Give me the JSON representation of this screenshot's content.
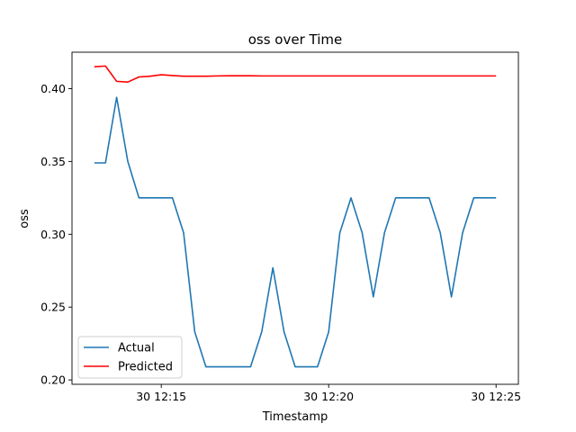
{
  "chart_data": {
    "type": "line",
    "title": "oss over Time",
    "xlabel": "Timestamp",
    "ylabel": "oss",
    "xlim": [
      "2000-01-30T12:12:20",
      "2000-01-30T12:25:40"
    ],
    "ylim": [
      0.197,
      0.425
    ],
    "xticks": [
      {
        "t": "2000-01-30T12:15:00",
        "label": "30 12:15"
      },
      {
        "t": "2000-01-30T12:20:00",
        "label": "30 12:20"
      },
      {
        "t": "2000-01-30T12:25:00",
        "label": "30 12:25"
      }
    ],
    "yticks": [
      0.2,
      0.25,
      0.3,
      0.35,
      0.4
    ],
    "ytick_labels": [
      "0.20",
      "0.25",
      "0.30",
      "0.35",
      "0.40"
    ],
    "x": [
      "2000-01-30T12:13:00",
      "2000-01-30T12:13:20",
      "2000-01-30T12:13:40",
      "2000-01-30T12:14:00",
      "2000-01-30T12:14:20",
      "2000-01-30T12:14:40",
      "2000-01-30T12:15:00",
      "2000-01-30T12:15:20",
      "2000-01-30T12:15:40",
      "2000-01-30T12:16:00",
      "2000-01-30T12:16:20",
      "2000-01-30T12:16:40",
      "2000-01-30T12:17:00",
      "2000-01-30T12:17:20",
      "2000-01-30T12:17:40",
      "2000-01-30T12:18:00",
      "2000-01-30T12:18:20",
      "2000-01-30T12:18:40",
      "2000-01-30T12:19:00",
      "2000-01-30T12:19:20",
      "2000-01-30T12:19:40",
      "2000-01-30T12:20:00",
      "2000-01-30T12:20:20",
      "2000-01-30T12:20:40",
      "2000-01-30T12:21:00",
      "2000-01-30T12:21:20",
      "2000-01-30T12:21:40",
      "2000-01-30T12:22:00",
      "2000-01-30T12:22:20",
      "2000-01-30T12:22:40",
      "2000-01-30T12:23:00",
      "2000-01-30T12:23:20",
      "2000-01-30T12:23:40",
      "2000-01-30T12:24:00",
      "2000-01-30T12:24:20",
      "2000-01-30T12:24:40",
      "2000-01-30T12:25:00"
    ],
    "series": [
      {
        "name": "Actual",
        "color": "#1f77b4",
        "values": [
          0.349,
          0.349,
          0.394,
          0.35,
          0.325,
          0.325,
          0.325,
          0.325,
          0.301,
          0.233,
          0.209,
          0.209,
          0.209,
          0.209,
          0.209,
          0.233,
          0.277,
          0.233,
          0.209,
          0.209,
          0.209,
          0.233,
          0.301,
          0.325,
          0.301,
          0.257,
          0.301,
          0.325,
          0.325,
          0.325,
          0.325,
          0.301,
          0.257,
          0.301,
          0.325,
          0.325,
          0.325
        ]
      },
      {
        "name": "Predicted",
        "color": "#ff0000",
        "values": [
          0.415,
          0.4155,
          0.405,
          0.4045,
          0.408,
          0.4085,
          0.4095,
          0.409,
          0.4085,
          0.4085,
          0.4085,
          0.4087,
          0.4088,
          0.4088,
          0.4088,
          0.4087,
          0.4087,
          0.4087,
          0.4087,
          0.4087,
          0.4087,
          0.4087,
          0.4087,
          0.4087,
          0.4087,
          0.4087,
          0.4087,
          0.4087,
          0.4087,
          0.4087,
          0.4087,
          0.4087,
          0.4087,
          0.4087,
          0.4087,
          0.4087,
          0.4087
        ]
      }
    ],
    "legend": "lower-left",
    "grid": false
  }
}
